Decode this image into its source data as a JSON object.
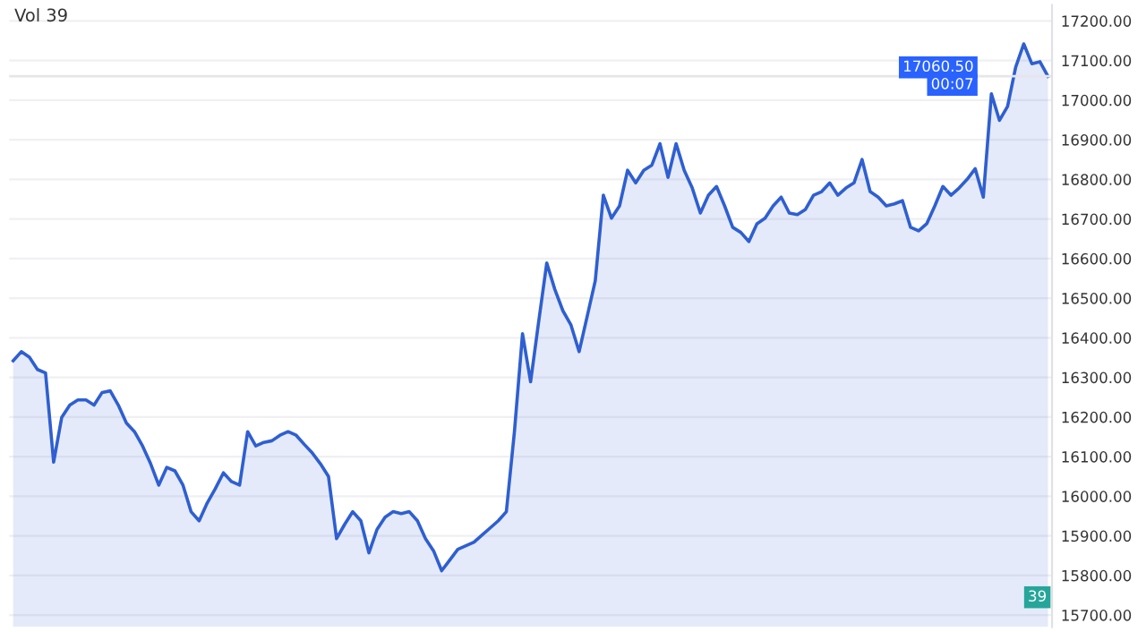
{
  "chart_data": {
    "type": "area",
    "categories": [
      null,
      null,
      null,
      null,
      null,
      null,
      null,
      null,
      null,
      null,
      null,
      null,
      null,
      null,
      null,
      null,
      null,
      null,
      null,
      null,
      null,
      null,
      null,
      null,
      null,
      null,
      null,
      null,
      null,
      null,
      null,
      null,
      null,
      null,
      null,
      null,
      null,
      null,
      null,
      null,
      null,
      null,
      null,
      null,
      null,
      null,
      null,
      null,
      null,
      null,
      null,
      null,
      null,
      null,
      null,
      null,
      null,
      null,
      null,
      null,
      null,
      null,
      null,
      null,
      null,
      null,
      null,
      null,
      null,
      null,
      null,
      null,
      null,
      null,
      null,
      null,
      null,
      null,
      null,
      null,
      null,
      null,
      null,
      null,
      null,
      null,
      null,
      null,
      null,
      null,
      null,
      null,
      null,
      null,
      null,
      null,
      null,
      null,
      null,
      null,
      null,
      null,
      null,
      null,
      null,
      null,
      null,
      null,
      null,
      null,
      null,
      null,
      null,
      null,
      null,
      null,
      null,
      null,
      null,
      null,
      null,
      null,
      null,
      null,
      null,
      null,
      null,
      null,
      null
    ],
    "series": [
      {
        "color": "#2f5fd0",
        "values": [
          16342,
          16365,
          16351,
          16320,
          16311,
          16086,
          16199,
          16230,
          16243,
          16243,
          16230,
          16262,
          16266,
          16230,
          16185,
          16163,
          16127,
          16082,
          16028,
          16073,
          16064,
          16028,
          15961,
          15938,
          15983,
          16019,
          16059,
          16037,
          16028,
          16163,
          16127,
          16136,
          16140,
          16154,
          16163,
          16154,
          16131,
          16109,
          16082,
          16050,
          15893,
          15929,
          15961,
          15938,
          15857,
          15916,
          15947,
          15961,
          15956,
          15961,
          15938,
          15893,
          15862,
          15812,
          15839,
          15866,
          15875,
          15884,
          15902,
          15920,
          15938,
          15961,
          16163,
          16410,
          16289,
          16441,
          16589,
          16522,
          16468,
          16432,
          16365,
          16454,
          16544,
          16760,
          16702,
          16733,
          16823,
          16791,
          16823,
          16836,
          16890,
          16805,
          16890,
          16823,
          16778,
          16715,
          16760,
          16782,
          16733,
          16679,
          16666,
          16643,
          16688,
          16702,
          16733,
          16755,
          16715,
          16711,
          16724,
          16760,
          16769,
          16791,
          16760,
          16778,
          16791,
          16850,
          16769,
          16755,
          16733,
          16738,
          16746,
          16679,
          16670,
          16688,
          16733,
          16782,
          16760,
          16778,
          16800,
          16827,
          16755,
          17016,
          16949,
          16984,
          17083,
          17142,
          17092,
          17097,
          17060
        ]
      }
    ],
    "ylim": [
      15670,
      17240
    ],
    "yticks": [
      {
        "value": 15700,
        "label": "15700.00"
      },
      {
        "value": 15800,
        "label": "15800.00"
      },
      {
        "value": 15900,
        "label": "15900.00"
      },
      {
        "value": 16000,
        "label": "16000.00"
      },
      {
        "value": 16100,
        "label": "16100.00"
      },
      {
        "value": 16200,
        "label": "16200.00"
      },
      {
        "value": 16300,
        "label": "16300.00"
      },
      {
        "value": 16400,
        "label": "16400.00"
      },
      {
        "value": 16500,
        "label": "16500.00"
      },
      {
        "value": 16600,
        "label": "16600.00"
      },
      {
        "value": 16700,
        "label": "16700.00"
      },
      {
        "value": 16800,
        "label": "16800.00"
      },
      {
        "value": 16900,
        "label": "16900.00"
      },
      {
        "value": 17000,
        "label": "17000.00"
      },
      {
        "value": 17100,
        "label": "17100.00"
      },
      {
        "value": 17200,
        "label": "17200.00"
      }
    ],
    "tick_labels": "y",
    "grid": true,
    "ref_lines": [
      {
        "axis": "y",
        "value": 17060.5,
        "label": "17060.50"
      }
    ],
    "annotations": [
      "00:07",
      "Vol 39",
      "39"
    ]
  }
}
